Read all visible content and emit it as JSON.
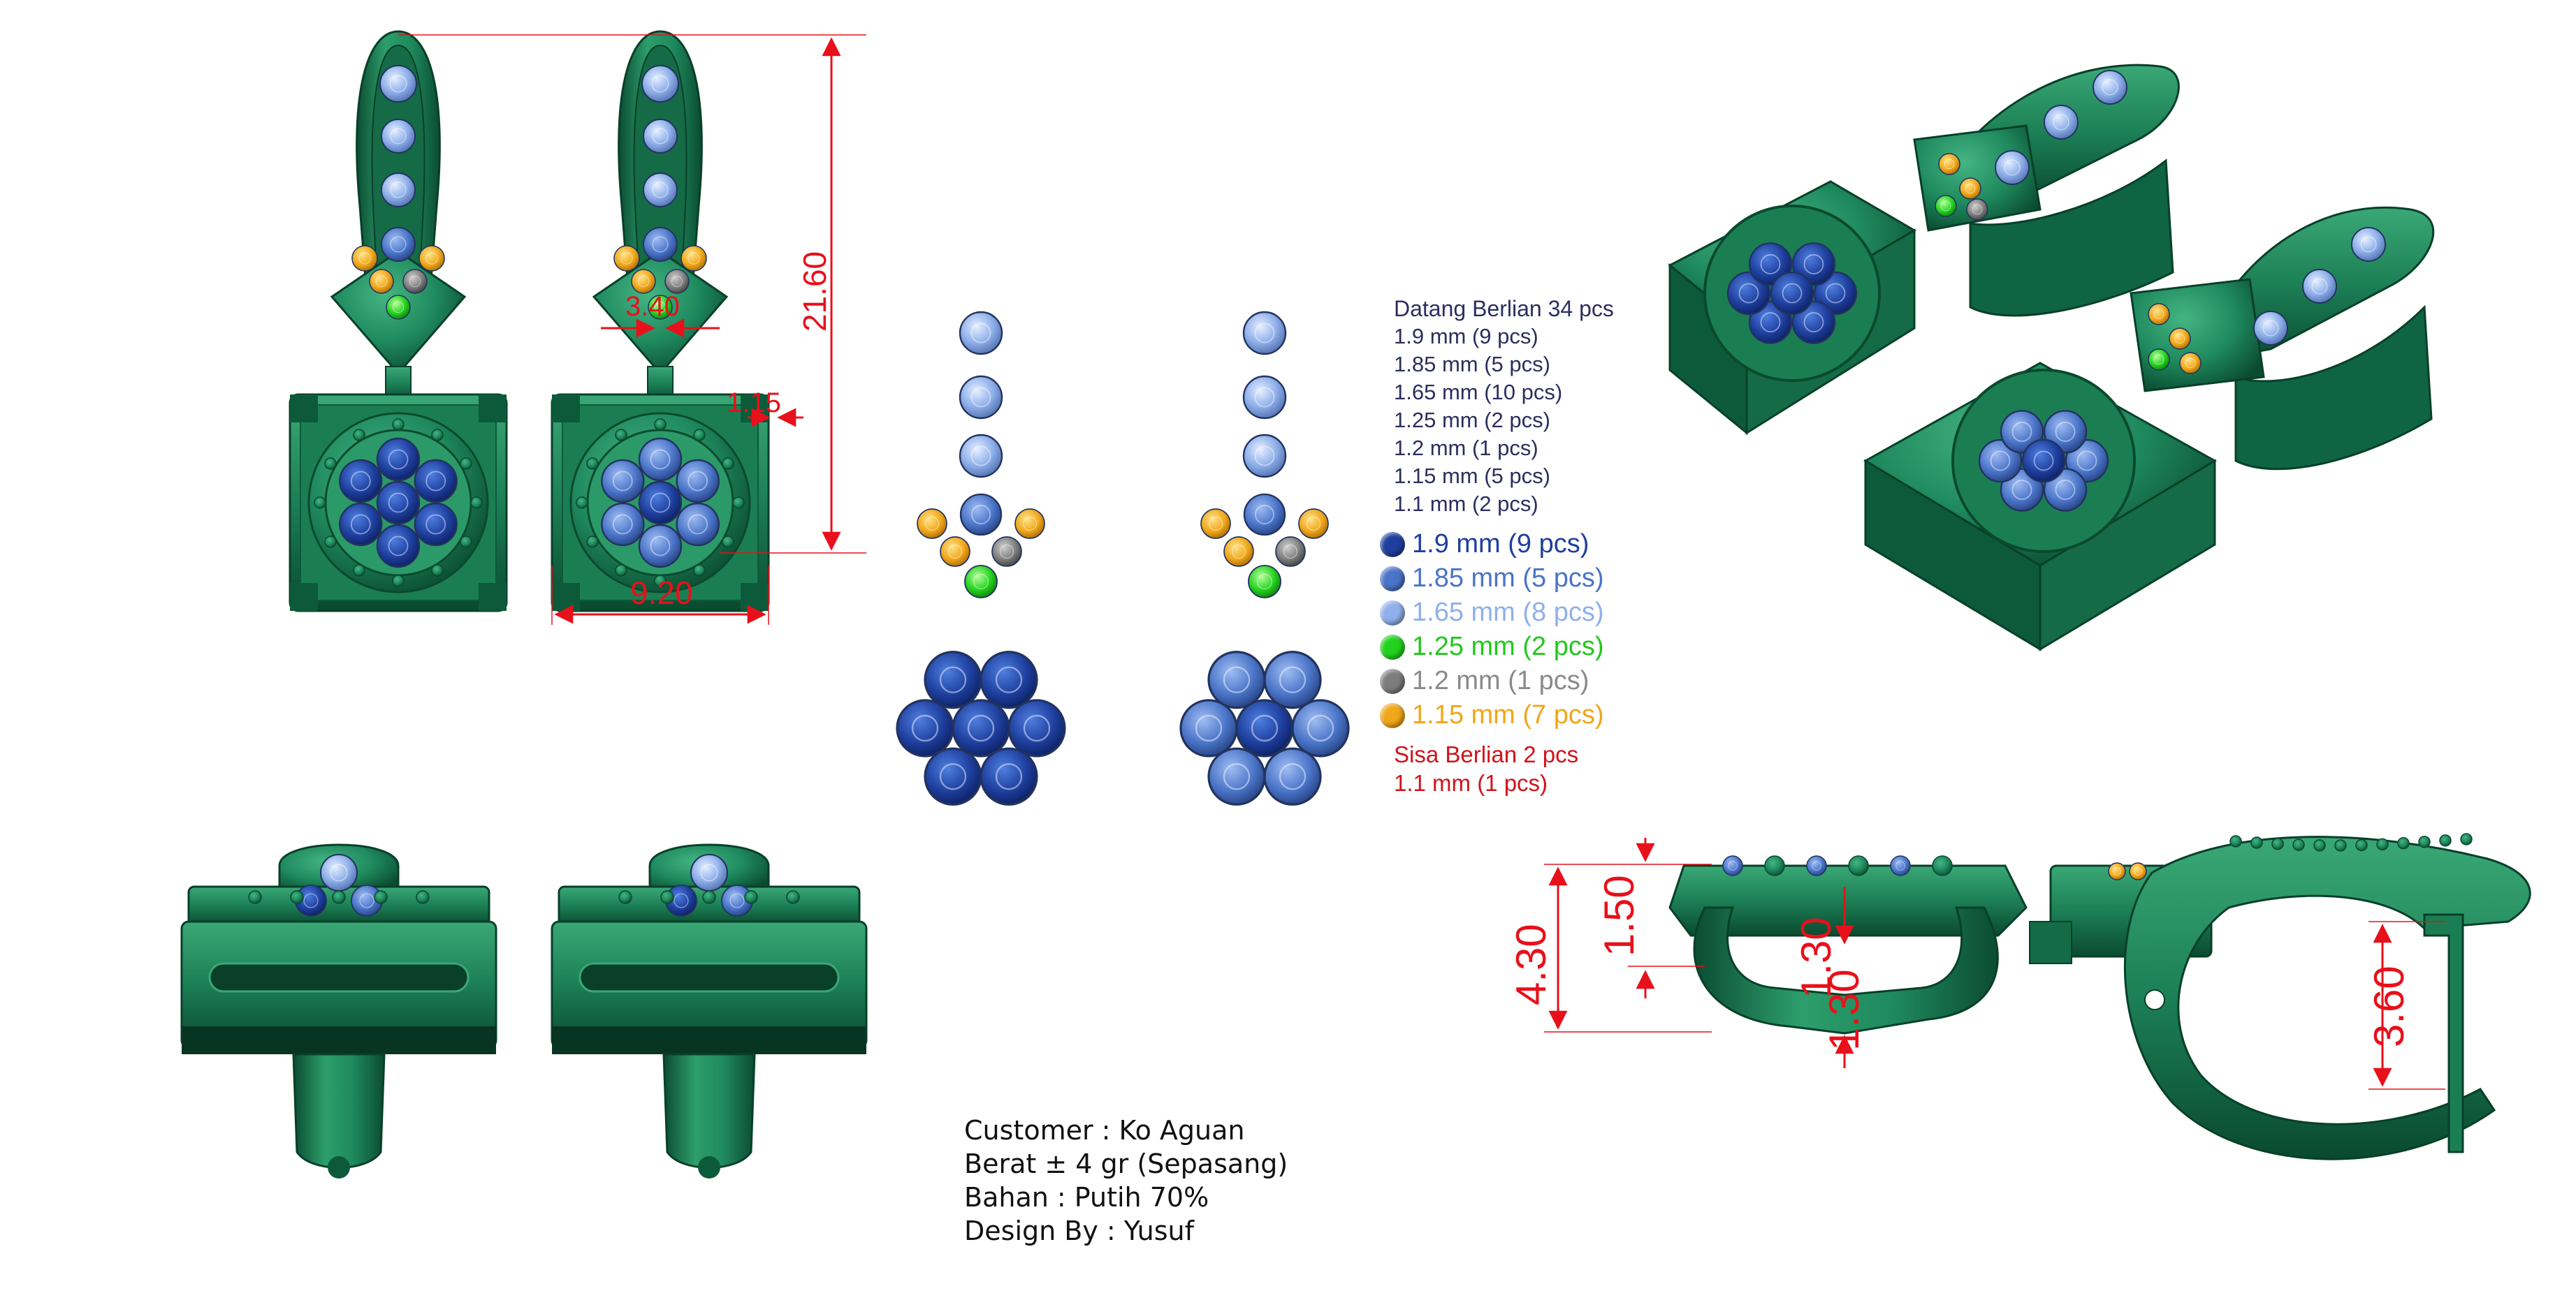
{
  "dimensions": {
    "height_total": "21.60",
    "width_square": "9.20",
    "pin_width": "3.40",
    "prong": "1.15",
    "side_total": "4.30",
    "side_top": "1.50",
    "side_mid": "1.30",
    "side_low": "1.30",
    "hook_height": "3.60"
  },
  "stone_summary": {
    "title": "Datang Berlian 34 pcs",
    "items": [
      "1.9 mm (9 pcs)",
      "1.85 mm (5 pcs)",
      "1.65 mm (10 pcs)",
      "1.25 mm (2 pcs)",
      "1.2 mm (1 pcs)",
      "1.15 mm (5 pcs)",
      "1.1 mm (2 pcs)"
    ]
  },
  "stone_legend": [
    {
      "label": "1.9 mm (9 pcs)",
      "color": "#1e3f9e",
      "text_color": "#1e3f9e"
    },
    {
      "label": "1.85 mm (5 pcs)",
      "color": "#4a74c8",
      "text_color": "#4a74c8"
    },
    {
      "label": "1.65 mm (8 pcs)",
      "color": "#8fb0ea",
      "text_color": "#8fb0ea"
    },
    {
      "label": "1.25 mm (2 pcs)",
      "color": "#22d21e",
      "text_color": "#22c81e"
    },
    {
      "label": "1.2 mm (1 pcs)",
      "color": "#7d7d7d",
      "text_color": "#8a8a8a"
    },
    {
      "label": "1.15 mm (7 pcs)",
      "color": "#f0a71a",
      "text_color": "#f0a71a"
    }
  ],
  "remaining": {
    "title": "Sisa Berlian 2 pcs",
    "items": [
      "1.1 mm (1 pcs)"
    ]
  },
  "info": {
    "customer": "Customer : Ko Aguan",
    "weight": "Berat ± 4 gr (Sepasang)",
    "material": "Bahan : Putih 70%",
    "designer": "Design By : Yusuf"
  },
  "colors": {
    "metal": "#1f8a5e",
    "metal_dark": "#0c5a3a",
    "dimension": "#e8101a"
  }
}
